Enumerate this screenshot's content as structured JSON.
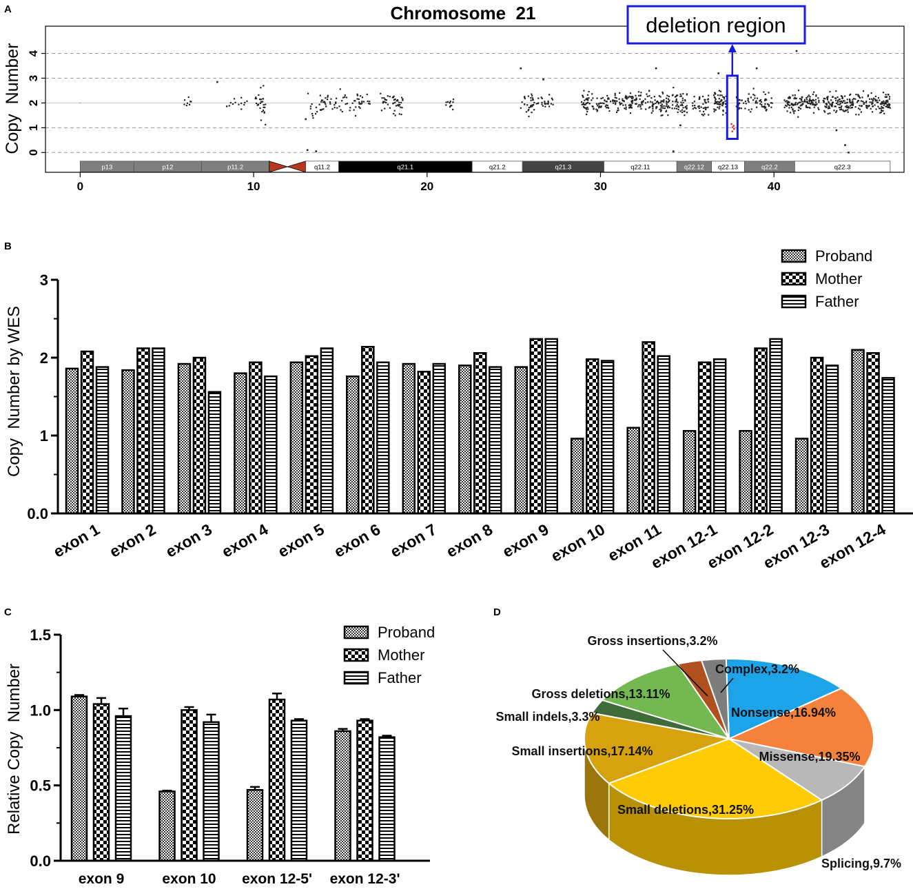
{
  "panels": {
    "a": "A",
    "b": "B",
    "c": "C",
    "d": "D"
  },
  "chart_data": [
    {
      "id": "A",
      "type": "scatter",
      "title": "Chromosome  21",
      "xlabel": "",
      "ylabel": "Copy  Number",
      "xlim": [
        -2,
        47.5
      ],
      "ylim": [
        -0.8,
        5.1
      ],
      "x_ticks": [
        0,
        10,
        20,
        30,
        40
      ],
      "y_ticks": [
        0,
        1,
        2,
        3,
        4
      ],
      "grid": "dashed at y = 0, 1, 3, 4; solid at y = 2",
      "annotation": {
        "text": "deletion region",
        "x_from": 37.3,
        "x_to": 37.9,
        "y_from": 0.55,
        "y_to": 3.1
      },
      "cytobands": [
        {
          "label": "p13",
          "start": 0,
          "end": 3.1,
          "color": "#7f7f7f",
          "text_color": "#ffffff"
        },
        {
          "label": "p12",
          "start": 3.1,
          "end": 7.0,
          "color": "#7f7f7f",
          "text_color": "#ffffff"
        },
        {
          "label": "p11.2",
          "start": 7.0,
          "end": 10.9,
          "color": "#7f7f7f",
          "text_color": "#ffffff"
        },
        {
          "label": "",
          "start": 10.9,
          "end": 13.0,
          "color": "#b5371c",
          "text_color": "#ffffff",
          "centromere": true
        },
        {
          "label": "q11.2",
          "start": 13.0,
          "end": 14.9,
          "color": "#ffffff",
          "text_color": "#000000"
        },
        {
          "label": "q21.1",
          "start": 14.9,
          "end": 22.6,
          "color": "#000000",
          "text_color": "#ffffff"
        },
        {
          "label": "q21.2",
          "start": 22.6,
          "end": 25.5,
          "color": "#ffffff",
          "text_color": "#000000"
        },
        {
          "label": "q21.3",
          "start": 25.5,
          "end": 30.2,
          "color": "#444444",
          "text_color": "#ffffff"
        },
        {
          "label": "q22.11",
          "start": 30.2,
          "end": 34.4,
          "color": "#ffffff",
          "text_color": "#000000"
        },
        {
          "label": "q22.12",
          "start": 34.4,
          "end": 36.4,
          "color": "#7f7f7f",
          "text_color": "#ffffff"
        },
        {
          "label": "q22.13",
          "start": 36.4,
          "end": 38.3,
          "color": "#ffffff",
          "text_color": "#000000"
        },
        {
          "label": "q22.2",
          "start": 38.3,
          "end": 41.2,
          "color": "#7f7f7f",
          "text_color": "#ffffff"
        },
        {
          "label": "q22.3",
          "start": 41.2,
          "end": 46.7,
          "color": "#ffffff",
          "text_color": "#000000"
        }
      ],
      "point_clusters": [
        {
          "center": 6.2,
          "spread": 0.25,
          "count": 8,
          "y_sd": 0.2
        },
        {
          "center": 9.0,
          "spread": 0.7,
          "count": 14,
          "y_sd": 0.12
        },
        {
          "center": 10.4,
          "spread": 0.3,
          "count": 28,
          "y_sd": 0.3
        },
        {
          "center": 13.5,
          "spread": 0.4,
          "count": 14,
          "y_sd": 0.25
        },
        {
          "center": 14.7,
          "spread": 0.9,
          "count": 38,
          "y_sd": 0.18
        },
        {
          "center": 16.2,
          "spread": 0.5,
          "count": 26,
          "y_sd": 0.18
        },
        {
          "center": 17.6,
          "spread": 0.3,
          "count": 16,
          "y_sd": 0.15
        },
        {
          "center": 18.3,
          "spread": 0.3,
          "count": 28,
          "y_sd": 0.25
        },
        {
          "center": 21.3,
          "spread": 0.25,
          "count": 12,
          "y_sd": 0.12
        },
        {
          "center": 25.8,
          "spread": 0.4,
          "count": 32,
          "y_sd": 0.2
        },
        {
          "center": 26.8,
          "spread": 0.5,
          "count": 24,
          "y_sd": 0.15
        },
        {
          "center": 29.5,
          "spread": 0.6,
          "count": 60,
          "y_sd": 0.2
        },
        {
          "center": 31.0,
          "spread": 0.9,
          "count": 70,
          "y_sd": 0.2
        },
        {
          "center": 32.6,
          "spread": 0.9,
          "count": 80,
          "y_sd": 0.2
        },
        {
          "center": 34.2,
          "spread": 0.8,
          "count": 90,
          "y_sd": 0.22
        },
        {
          "center": 35.8,
          "spread": 0.5,
          "count": 40,
          "y_sd": 0.22
        },
        {
          "center": 36.9,
          "spread": 0.4,
          "count": 60,
          "y_sd": 0.22
        },
        {
          "center": 38.1,
          "spread": 0.3,
          "count": 20,
          "y_sd": 0.2
        },
        {
          "center": 39.2,
          "spread": 0.7,
          "count": 50,
          "y_sd": 0.2
        },
        {
          "center": 41.6,
          "spread": 1.0,
          "count": 120,
          "y_sd": 0.2
        },
        {
          "center": 44.0,
          "spread": 1.2,
          "count": 140,
          "y_sd": 0.2
        },
        {
          "center": 46.0,
          "spread": 0.7,
          "count": 90,
          "y_sd": 0.2
        }
      ],
      "outliers": [
        {
          "x": 0.0,
          "y": 2.0
        },
        {
          "x": 7.9,
          "y": 2.85
        },
        {
          "x": 13.0,
          "y": 1.35
        },
        {
          "x": 13.1,
          "y": 0.1
        },
        {
          "x": 13.6,
          "y": 0.05
        },
        {
          "x": 25.4,
          "y": 3.4
        },
        {
          "x": 26.7,
          "y": 2.95
        },
        {
          "x": 33.2,
          "y": 3.4
        },
        {
          "x": 34.2,
          "y": 0.05
        },
        {
          "x": 34.6,
          "y": 1.1
        },
        {
          "x": 36.8,
          "y": 3.2
        },
        {
          "x": 39.0,
          "y": 3.4
        },
        {
          "x": 41.3,
          "y": 4.1
        },
        {
          "x": 43.6,
          "y": 0.9
        },
        {
          "x": 44.1,
          "y": 0.3
        },
        {
          "x": 44.3,
          "y": 0.0
        }
      ],
      "deleted_points": [
        {
          "x": 37.55,
          "y": 1.15
        },
        {
          "x": 37.62,
          "y": 1.02
        },
        {
          "x": 37.7,
          "y": 0.95
        },
        {
          "x": 37.6,
          "y": 0.85
        },
        {
          "x": 37.68,
          "y": 1.08
        }
      ]
    },
    {
      "id": "B",
      "type": "bar",
      "title": "",
      "xlabel": "",
      "ylabel": "Copy  Number by WES",
      "ylim": [
        0,
        3
      ],
      "y_ticks": [
        "0.0",
        "1",
        "2",
        "3"
      ],
      "legend_position": "top-right",
      "categories": [
        "exon 1",
        "exon 2",
        "exon 3",
        "exon 4",
        "exon 5",
        "exon 6",
        "exon 7",
        "exon 8",
        "exon 9",
        "exon 10",
        "exon 11",
        "exon 12-1",
        "exon 12-2",
        "exon 12-3",
        "exon 12-4"
      ],
      "series": [
        {
          "name": "Proband",
          "pattern": "fine-check",
          "values": [
            1.86,
            1.84,
            1.92,
            1.8,
            1.94,
            1.76,
            1.92,
            1.9,
            1.88,
            0.96,
            1.1,
            1.06,
            1.06,
            0.96,
            2.1
          ]
        },
        {
          "name": "Mother",
          "pattern": "big-check",
          "values": [
            2.08,
            2.12,
            2.0,
            1.94,
            2.02,
            2.14,
            1.82,
            2.06,
            2.24,
            1.98,
            2.2,
            1.94,
            2.12,
            2.0,
            2.06
          ]
        },
        {
          "name": "Father",
          "pattern": "horizontal-lines",
          "values": [
            1.88,
            2.12,
            1.56,
            1.76,
            2.12,
            1.94,
            1.92,
            1.88,
            2.24,
            1.96,
            2.02,
            1.98,
            2.24,
            1.9,
            1.74
          ]
        }
      ]
    },
    {
      "id": "C",
      "type": "bar",
      "title": "",
      "xlabel": "",
      "ylabel": "Relative Copy  Number",
      "ylim": [
        0,
        1.5
      ],
      "y_ticks": [
        "0.0",
        "0.5",
        "1.0",
        "1.5"
      ],
      "legend_position": "top-right",
      "categories": [
        "exon 9",
        "exon 10",
        "exon 12-5'",
        "exon 12-3'"
      ],
      "series": [
        {
          "name": "Proband",
          "pattern": "fine-check",
          "values": [
            1.09,
            0.46,
            0.47,
            0.86
          ],
          "errors": [
            0.01,
            0.005,
            0.02,
            0.015
          ]
        },
        {
          "name": "Mother",
          "pattern": "big-check",
          "values": [
            1.04,
            1.0,
            1.07,
            0.93
          ],
          "errors": [
            0.04,
            0.02,
            0.04,
            0.01
          ]
        },
        {
          "name": "Father",
          "pattern": "horizontal-lines",
          "values": [
            0.96,
            0.92,
            0.93,
            0.82
          ],
          "errors": [
            0.05,
            0.05,
            0.01,
            0.01
          ]
        }
      ]
    },
    {
      "id": "D",
      "type": "pie",
      "title": "",
      "style": "3d",
      "slices": [
        {
          "label": "Nonsense,16.94%",
          "value": 16.94,
          "color": "#1ca3e8"
        },
        {
          "label": "Missense,19.35%",
          "value": 19.35,
          "color": "#f5823c"
        },
        {
          "label": "Splicing,9.7%",
          "value": 9.7,
          "color": "#b8b8b8"
        },
        {
          "label": "Small deletions,31.25%",
          "value": 31.25,
          "color": "#ffcb05"
        },
        {
          "label": "Small insertions,17.14%",
          "value": 17.14,
          "color": "#d6a30e"
        },
        {
          "label": "Small indels,3.3%",
          "value": 3.3,
          "color": "#3f6b38"
        },
        {
          "label": "Gross deletions,13.11%",
          "value": 13.11,
          "color": "#74b852"
        },
        {
          "label": "Gross insertions,3.2%",
          "value": 3.2,
          "color": "#b0501e"
        },
        {
          "label": "Complex,3.2%",
          "value": 3.2,
          "color": "#7d7d7d"
        }
      ]
    }
  ]
}
